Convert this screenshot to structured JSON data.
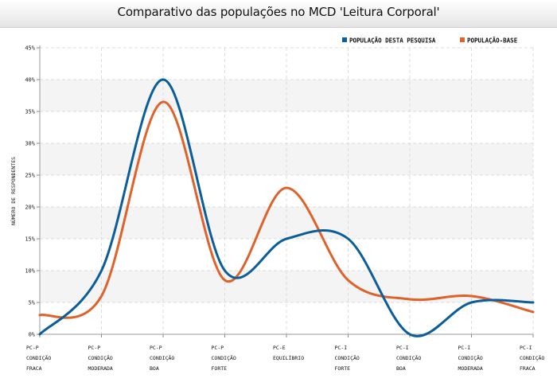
{
  "chart_data": {
    "type": "line",
    "title": "Comparativo das populações no MCD 'Leitura Corporal'",
    "xlabel": "",
    "ylabel": "NÚMERO DE RESPONDENTES",
    "ylim": [
      0,
      45
    ],
    "yticks": [
      "0%",
      "5%",
      "10%",
      "15%",
      "20%",
      "25%",
      "30%",
      "35%",
      "40%",
      "45%"
    ],
    "categories": [
      [
        "PC-P",
        "CONDIÇÃO",
        "FRACA"
      ],
      [
        "PC-P",
        "CONDIÇÃO",
        "MODERADA"
      ],
      [
        "PC-P",
        "CONDIÇÃO",
        "BOA"
      ],
      [
        "PC-P",
        "CONDIÇÃO",
        "FORTE"
      ],
      [
        "PC-E",
        "EQUILÍBRIO"
      ],
      [
        "PC-I",
        "CONDIÇÃO",
        "FORTE"
      ],
      [
        "PC-I",
        "CONDIÇÃO",
        "BOA"
      ],
      [
        "PC-I",
        "CONDIÇÃO",
        "MODERADA"
      ],
      [
        "PC-I",
        "CONDIÇÃO",
        "FRACA"
      ]
    ],
    "series": [
      {
        "name": "POPULAÇÃO DESTA PESQUISA",
        "color": "#0b5e99",
        "values": [
          0,
          10,
          40,
          10,
          15,
          15,
          0,
          5,
          5
        ]
      },
      {
        "name": "POPULAÇÃO-BASE",
        "color": "#e0622b",
        "values": [
          3,
          6,
          36.5,
          8.5,
          23,
          8.5,
          5.5,
          6,
          3.5
        ]
      }
    ],
    "grid": true,
    "legend_position": "top-right"
  }
}
